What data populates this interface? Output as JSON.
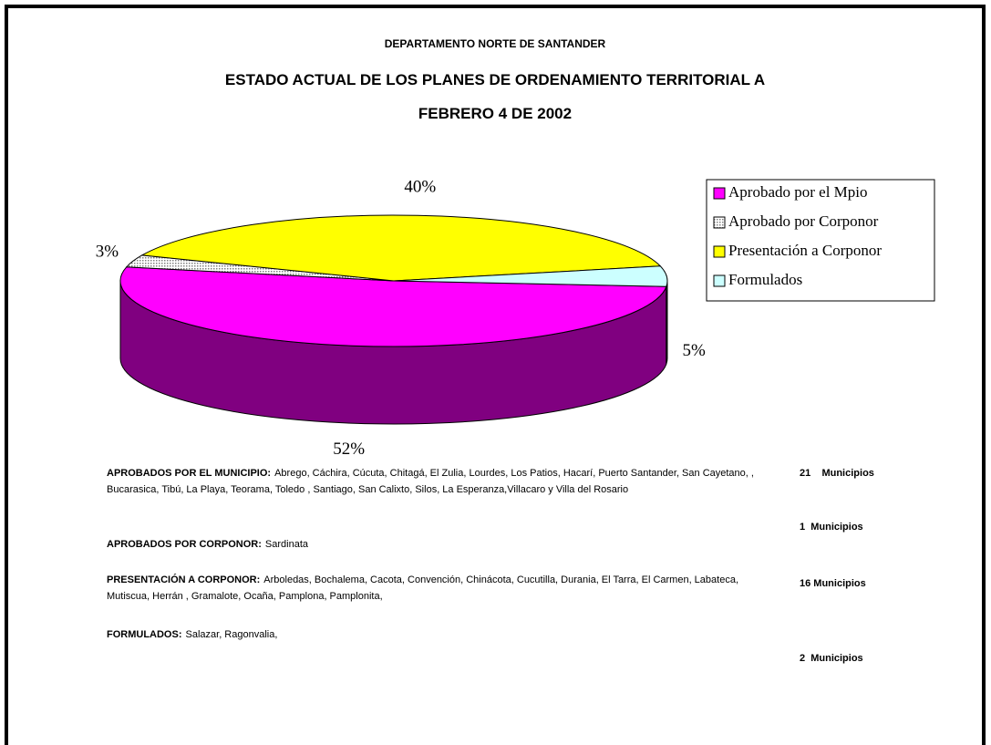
{
  "chart_data": {
    "type": "pie3d",
    "title": "DEPARTAMENTO NORTE DE SANTANDER",
    "subtitle": [
      "ESTADO ACTUAL DE  LOS PLANES DE ORDENAMIENTO TERRITORIAL  A",
      "FEBRERO 4 DE 2002"
    ],
    "categories": [
      "Aprobado por el Mpio",
      "Aprobado por Corponor",
      "Presentación a Corponor",
      "Formulados"
    ],
    "values": [
      52,
      3,
      40,
      5
    ],
    "value_labels": [
      "52%",
      "3%",
      "40%",
      "5%"
    ],
    "colors": [
      "#ff00ff",
      "#c0c0c0",
      "#ffff00",
      "#ccffff"
    ],
    "legend": "right"
  },
  "notes": [
    {
      "label": "APROBADOS POR EL MUNICIPIO:",
      "text": "Abrego, Cáchira, Cúcuta, Chitagá, El Zulia,  Lourdes, Los Patios, Hacarí, Puerto Santander, San Cayetano,  , Bucarasica, Tibú, La Playa, Teorama,  Toledo , Santiago, San Calixto, Silos, La Esperanza,Villacaro y Villa del Rosario",
      "count": "21    Municipios"
    },
    {
      "label": "APROBADOS POR CORPONOR:",
      "text": "Sardinata",
      "count": "1  Municipios"
    },
    {
      "label": "PRESENTACIÓN A CORPONOR:",
      "text": "Arboledas, Bochalema, Cacota, Convención, Chinácota, Cucutilla, Durania, El Tarra, El Carmen, Labateca, Mutiscua, Herrán , Gramalote, Ocaña, Pamplona, Pamplonita,",
      "count": "16 Municipios"
    },
    {
      "label": "FORMULADOS:",
      "text": "Salazar, Ragonvalia,",
      "count": "2  Municipios"
    }
  ]
}
